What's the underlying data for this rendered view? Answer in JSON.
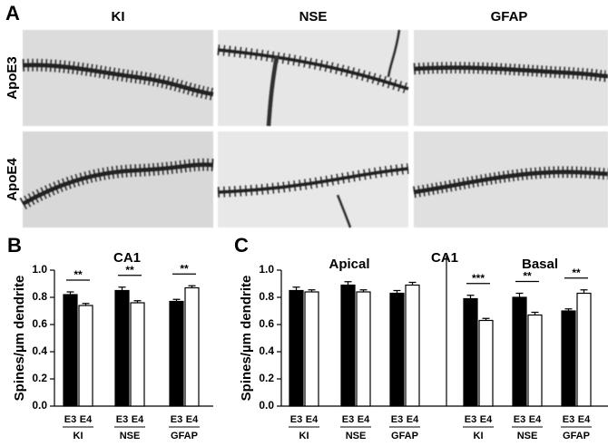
{
  "panel_a": {
    "label": "A",
    "columns": [
      "KI",
      "NSE",
      "GFAP"
    ],
    "rows": [
      "ApoE3",
      "ApoE4"
    ]
  },
  "chart_data": [
    {
      "type": "bar",
      "label": "B",
      "title": "CA1",
      "ylabel": "Spines/µm dendrite",
      "ylim": [
        0,
        1
      ],
      "yticks": [
        {
          "value": 0,
          "label": "0.0"
        },
        0.2,
        0.4,
        0.6,
        0.8,
        {
          "value": 1,
          "label": "1.0"
        }
      ],
      "sections": [
        {
          "categories": [
            "KI",
            "NSE",
            "GFAP"
          ],
          "series": [
            {
              "name": "E3",
              "color": "#000000",
              "values": [
                0.82,
                0.85,
                0.77
              ],
              "errors": [
                0.02,
                0.025,
                0.015
              ]
            },
            {
              "name": "E4",
              "color": "#ffffff",
              "values": [
                0.74,
                0.76,
                0.87
              ],
              "errors": [
                0.015,
                0.015,
                0.015
              ]
            }
          ],
          "significance": [
            "**",
            "**",
            "**"
          ]
        }
      ]
    },
    {
      "type": "bar",
      "label": "C",
      "title": "CA1",
      "ylabel": "Spines/µm dendrite",
      "ylim": [
        0,
        1
      ],
      "yticks": [
        {
          "value": 0,
          "label": "0.0"
        },
        0.2,
        0.4,
        0.6,
        0.8,
        {
          "value": 1,
          "label": "1.0"
        }
      ],
      "sections": [
        {
          "title": "Apical",
          "categories": [
            "KI",
            "NSE",
            "GFAP"
          ],
          "series": [
            {
              "name": "E3",
              "color": "#000000",
              "values": [
                0.85,
                0.89,
                0.83
              ],
              "errors": [
                0.025,
                0.025,
                0.02
              ]
            },
            {
              "name": "E4",
              "color": "#ffffff",
              "values": [
                0.84,
                0.84,
                0.89
              ],
              "errors": [
                0.015,
                0.015,
                0.02
              ]
            }
          ]
        },
        {
          "title": "Basal",
          "categories": [
            "KI",
            "NSE",
            "GFAP"
          ],
          "series": [
            {
              "name": "E3",
              "color": "#000000",
              "values": [
                0.79,
                0.8,
                0.7
              ],
              "errors": [
                0.025,
                0.03,
                0.015
              ]
            },
            {
              "name": "E4",
              "color": "#ffffff",
              "values": [
                0.63,
                0.67,
                0.83
              ],
              "errors": [
                0.015,
                0.02,
                0.025
              ]
            }
          ],
          "significance": [
            "***",
            "**",
            "**"
          ]
        }
      ]
    }
  ]
}
